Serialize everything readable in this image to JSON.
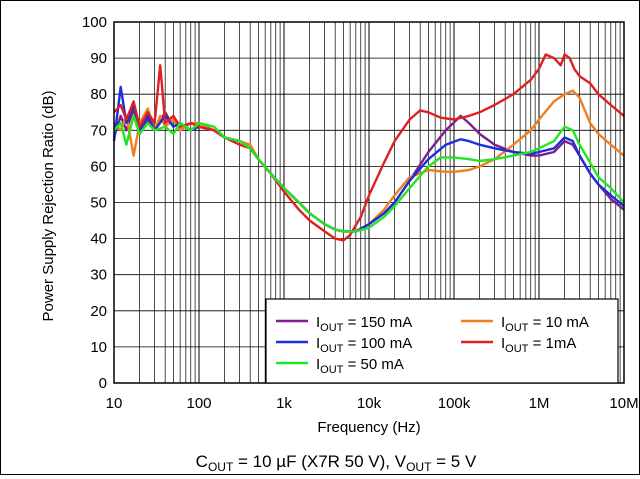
{
  "chart_data": {
    "type": "line",
    "xlabel": "Frequency (Hz)",
    "ylabel": "Power Supply Rejection Ratio (dB)",
    "xscale": "log",
    "xlim": [
      10,
      10000000
    ],
    "ylim": [
      0,
      100
    ],
    "grid": true,
    "legend_position": "bottom-right",
    "x_ticks": [
      10,
      100,
      1000,
      10000,
      100000,
      1000000,
      10000000
    ],
    "x_tick_labels": [
      "10",
      "100",
      "1k",
      "10k",
      "100k",
      "1M",
      "10M"
    ],
    "y_ticks": [
      0,
      10,
      20,
      30,
      40,
      50,
      60,
      70,
      80,
      90,
      100
    ],
    "y_tick_labels": [
      "0",
      "10",
      "20",
      "30",
      "40",
      "50",
      "60",
      "70",
      "80",
      "90",
      "100"
    ],
    "caption": {
      "c_main": "C",
      "c_sub": "OUT",
      "c_rest": " = 10 µF (X7R 50 V), V",
      "v_sub": "OUT",
      "v_rest": " = 5 V"
    },
    "series": [
      {
        "label_main": "I",
        "label_sub": "OUT",
        "label_rest": " = 150 mA",
        "color": "#7b1f8f",
        "x": [
          10,
          12,
          14,
          17,
          20,
          25,
          30,
          40,
          50,
          60,
          80,
          100,
          150,
          200,
          300,
          400,
          500,
          700,
          1000,
          1500,
          2000,
          3000,
          4000,
          5000,
          7000,
          10000,
          15000,
          20000,
          30000,
          50000,
          80000,
          120000,
          150000,
          200000,
          300000,
          500000,
          800000,
          1000000,
          1500000,
          2000000,
          2500000,
          3000000,
          4000000,
          5000000,
          7000000,
          10000000
        ],
        "y": [
          68,
          74,
          70,
          76,
          69,
          73,
          70,
          75,
          71,
          72,
          70,
          71,
          70,
          68,
          67,
          65,
          62,
          58,
          54,
          50,
          47,
          44,
          42.5,
          42,
          42,
          44,
          47,
          50,
          56,
          64,
          70,
          74,
          72,
          69,
          66,
          64,
          63,
          63,
          64,
          67,
          66,
          63,
          58,
          55,
          51,
          48
        ]
      },
      {
        "label_main": "I",
        "label_sub": "OUT",
        "label_rest": " = 10 mA",
        "color": "#f07f1f",
        "x": [
          10,
          12,
          14,
          17,
          20,
          25,
          30,
          35,
          40,
          50,
          60,
          80,
          100,
          150,
          200,
          300,
          400,
          500,
          700,
          1000,
          1500,
          2000,
          3000,
          4000,
          5000,
          7000,
          10000,
          15000,
          20000,
          30000,
          50000,
          80000,
          100000,
          150000,
          200000,
          300000,
          500000,
          800000,
          1000000,
          1500000,
          2000000,
          2500000,
          3000000,
          4000000,
          5000000,
          7000000,
          10000000
        ],
        "y": [
          72,
          70,
          74,
          63,
          72,
          76,
          70,
          74,
          71,
          73,
          70,
          72,
          72,
          70,
          68,
          67,
          66,
          62,
          58,
          54,
          50,
          47,
          44,
          42.5,
          42,
          42,
          44,
          48,
          52,
          57,
          59,
          58.5,
          58.5,
          59,
          60,
          62,
          66,
          70,
          73,
          78,
          80,
          81,
          79,
          72,
          69,
          66,
          63
        ]
      },
      {
        "label_main": "I",
        "label_sub": "OUT",
        "label_rest": " = 100 mA",
        "color": "#1f2fd8",
        "x": [
          10,
          12,
          14,
          17,
          20,
          25,
          30,
          40,
          50,
          60,
          80,
          100,
          150,
          200,
          300,
          400,
          500,
          700,
          1000,
          1500,
          2000,
          3000,
          4000,
          5000,
          7000,
          10000,
          15000,
          20000,
          30000,
          50000,
          80000,
          120000,
          150000,
          200000,
          300000,
          500000,
          800000,
          1000000,
          1500000,
          2000000,
          2500000,
          3000000,
          4000000,
          5000000,
          7000000,
          10000000
        ],
        "y": [
          67,
          82,
          72,
          77,
          70,
          74,
          70,
          74,
          71,
          72,
          70,
          71,
          70,
          68,
          67,
          65,
          62,
          58,
          54,
          50,
          47,
          44,
          42.5,
          42,
          42,
          44,
          47,
          50,
          56,
          62,
          66,
          67.5,
          67,
          66,
          65,
          64,
          63.5,
          64,
          65,
          68,
          67,
          63,
          58,
          55,
          52,
          49
        ]
      },
      {
        "label_main": "I",
        "label_sub": "OUT",
        "label_rest": " = 1mA",
        "color": "#e02020",
        "x": [
          10,
          12,
          14,
          17,
          20,
          25,
          30,
          35,
          40,
          50,
          60,
          80,
          100,
          150,
          200,
          300,
          400,
          500,
          700,
          1000,
          1500,
          2000,
          3000,
          4000,
          5000,
          6000,
          8000,
          10000,
          15000,
          20000,
          30000,
          40000,
          50000,
          70000,
          100000,
          150000,
          200000,
          300000,
          500000,
          800000,
          1000000,
          1200000,
          1500000,
          1800000,
          2000000,
          2300000,
          2600000,
          3000000,
          4000000,
          5000000,
          7000000,
          10000000
        ],
        "y": [
          75,
          77,
          73,
          78,
          71,
          75,
          72,
          88,
          72,
          74,
          71,
          72,
          71,
          70,
          68,
          66,
          65,
          62,
          58,
          53,
          48,
          45,
          42,
          40,
          39.5,
          41,
          46,
          52,
          61,
          67,
          73,
          75.5,
          75,
          73.5,
          73,
          74,
          75,
          77,
          80,
          84,
          87,
          91,
          90,
          88,
          91,
          90,
          87,
          85,
          83,
          80,
          77,
          74
        ]
      },
      {
        "label_main": "I",
        "label_sub": "OUT",
        "label_rest": " = 50 mA",
        "color": "#22e622",
        "x": [
          10,
          12,
          14,
          17,
          20,
          25,
          30,
          40,
          50,
          60,
          80,
          100,
          150,
          200,
          300,
          400,
          500,
          700,
          1000,
          1500,
          2000,
          3000,
          4000,
          5000,
          7000,
          10000,
          15000,
          20000,
          30000,
          50000,
          70000,
          100000,
          150000,
          200000,
          300000,
          500000,
          800000,
          1000000,
          1500000,
          2000000,
          2500000,
          3000000,
          4000000,
          5000000,
          7000000,
          10000000
        ],
        "y": [
          70,
          72,
          66,
          74,
          69,
          72,
          70,
          71,
          69,
          72,
          70,
          72,
          71,
          68,
          67,
          65,
          62,
          58,
          54,
          50,
          47,
          44,
          42.5,
          42,
          42,
          43,
          46,
          49,
          54,
          60,
          62.5,
          62.5,
          62,
          61.5,
          62,
          63,
          64,
          65,
          67,
          71,
          70,
          66,
          61,
          57,
          54,
          50
        ]
      }
    ]
  }
}
